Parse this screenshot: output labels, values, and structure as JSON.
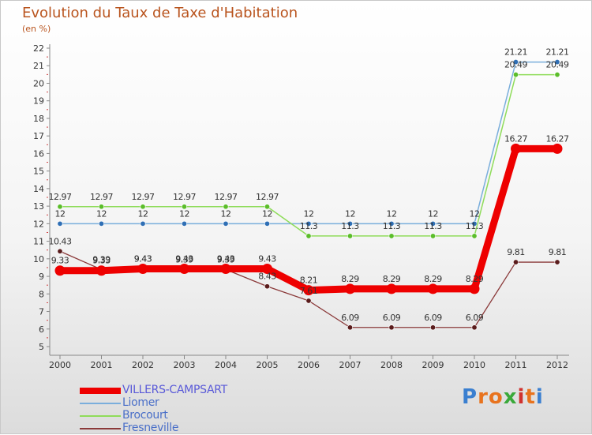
{
  "title": "Evolution du Taux de Taxe d'Habitation",
  "subtitle": "(en %)",
  "logo": {
    "text": "Proxiti",
    "letters": [
      "P",
      "r",
      "o",
      "x",
      "i",
      "t",
      "i"
    ],
    "colors": [
      "#3a7fd0",
      "#e8731e",
      "#e8731e",
      "#3aa93a",
      "#d0312e",
      "#e8731e",
      "#3a7fd0"
    ]
  },
  "chart_data": {
    "type": "line",
    "title": "Evolution du Taux de Taxe d'Habitation",
    "ylabel": "(en %)",
    "xlabel": "",
    "x": [
      "2000",
      "2001",
      "2002",
      "2003",
      "2004",
      "2005",
      "2006",
      "2007",
      "2008",
      "2009",
      "2010",
      "2011",
      "2012"
    ],
    "ylim": [
      5,
      22
    ],
    "yticks": [
      "5",
      "6",
      "7",
      "8",
      "9",
      "10",
      "11",
      "12",
      "13",
      "14",
      "15",
      "16",
      "17",
      "18",
      "19",
      "20",
      "21",
      "22"
    ],
    "series": [
      {
        "name": "Liomer",
        "color": "#7aaedc",
        "marker": "#2f6fb5",
        "width": 1.5,
        "values": [
          12,
          12,
          12,
          12,
          12,
          12,
          12,
          12,
          12,
          12,
          12,
          21.21,
          21.21
        ],
        "labels": [
          "12",
          "12",
          "12",
          "12",
          "12",
          "12",
          "12",
          "12",
          "12",
          "12",
          "12",
          "21.21",
          "21.21"
        ]
      },
      {
        "name": "Brocourt",
        "color": "#8fdc5a",
        "marker": "#5bbd2a",
        "width": 1.5,
        "values": [
          12.97,
          12.97,
          12.97,
          12.97,
          12.97,
          12.97,
          11.3,
          11.3,
          11.3,
          11.3,
          11.3,
          20.49,
          20.49
        ],
        "labels": [
          "12.97",
          "12.97",
          "12.97",
          "12.97",
          "12.97",
          "12.97",
          "11.3",
          "11.3",
          "11.3",
          "11.3",
          "11.3",
          "20.49",
          "20.49"
        ]
      },
      {
        "name": "Fresneville",
        "color": "#8b3a3a",
        "marker": "#5a1c1c",
        "width": 1.3,
        "values": [
          10.43,
          9.39,
          9.43,
          9.39,
          9.39,
          8.43,
          7.61,
          6.09,
          6.09,
          6.09,
          6.09,
          9.81,
          9.81
        ],
        "labels": [
          "10.43",
          "9.39",
          "9.43",
          "9.39",
          "9.39",
          "8.43",
          "7.61",
          "6.09",
          "6.09",
          "6.09",
          "6.09",
          "9.81",
          "9.81"
        ]
      },
      {
        "name": "VILLERS-CAMPSART",
        "color": "#ee0000",
        "marker": "#ee0000",
        "width": 9,
        "values": [
          9.33,
          9.33,
          9.43,
          9.43,
          9.43,
          9.43,
          8.21,
          8.29,
          8.29,
          8.29,
          8.29,
          16.27,
          16.27
        ],
        "labels": [
          "9.33",
          "9.33",
          "9.43",
          "9.43",
          "9.43",
          "9.43",
          "8.21",
          "8.29",
          "8.29",
          "8.29",
          "8.29",
          "16.27",
          "16.27"
        ]
      }
    ],
    "legend": [
      "VILLERS-CAMPSART",
      "Liomer",
      "Brocourt",
      "Fresneville"
    ],
    "legend_position": "bottom-left",
    "grid": false
  }
}
